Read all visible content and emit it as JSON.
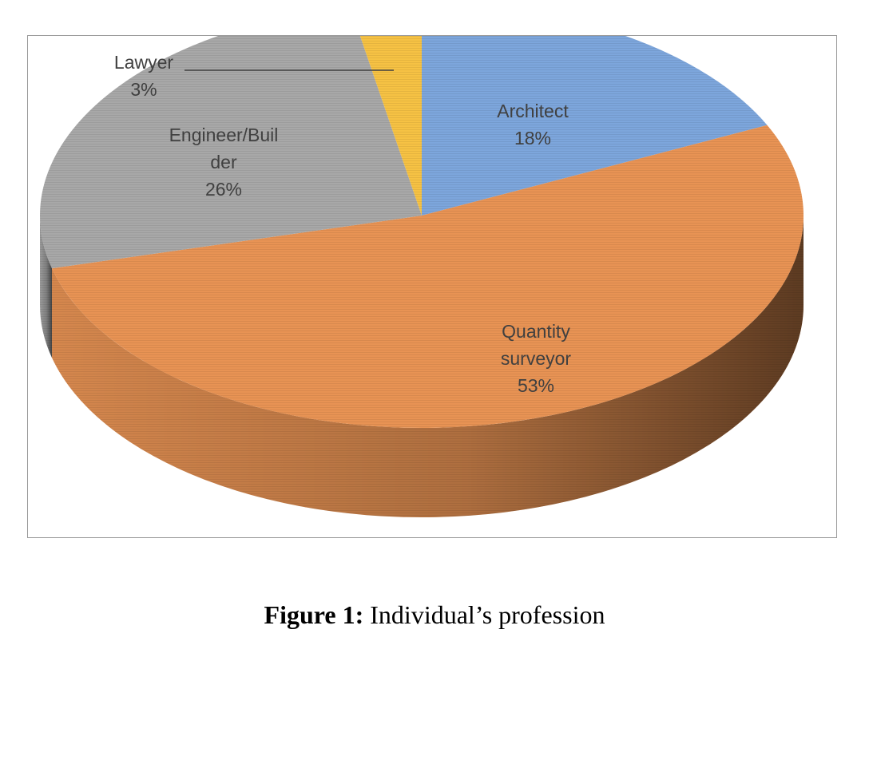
{
  "chart_data": {
    "type": "pie",
    "style": "3d",
    "slices": [
      {
        "label_lines": [
          "Architect",
          "18%"
        ],
        "value": 18,
        "color": "#7da6dc"
      },
      {
        "label_lines": [
          "Quantity",
          "surveyor",
          "53%"
        ],
        "value": 53,
        "color": "#e89354"
      },
      {
        "label_lines": [
          "Engineer/Buil",
          "der",
          "26%"
        ],
        "value": 26,
        "color": "#a8a8a8"
      },
      {
        "label_lines": [
          "Lawyer",
          "3%"
        ],
        "value": 3,
        "color": "#f6c244"
      }
    ]
  },
  "caption": {
    "label": "Figure 1:",
    "text": "Individual’s profession"
  }
}
